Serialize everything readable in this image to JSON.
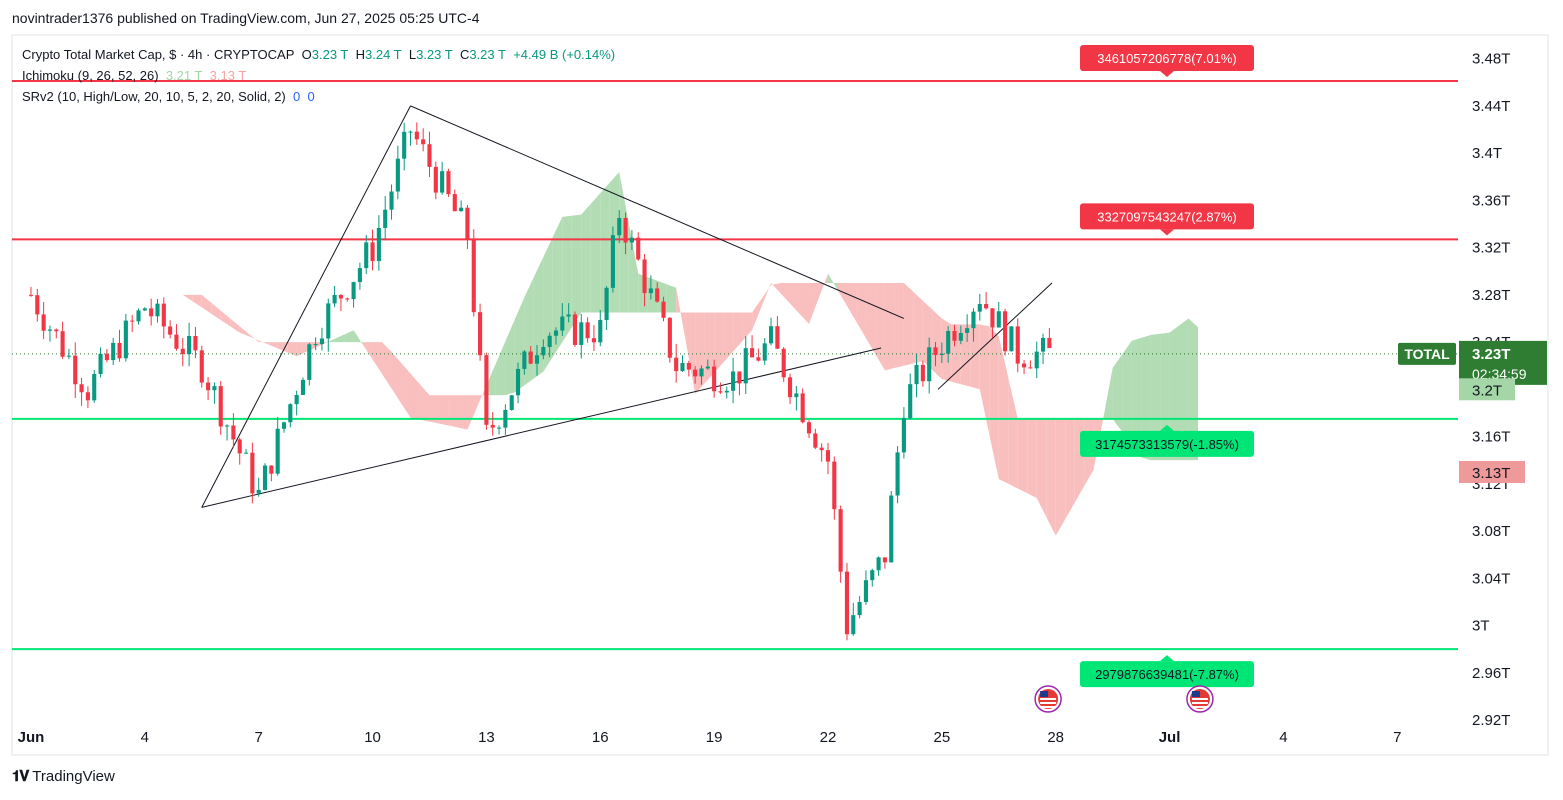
{
  "header": {
    "publisher": "novintrader1376 published on TradingView.com, Jun 27, 2025 05:25 UTC-4"
  },
  "legend": {
    "symbol": "Crypto Total Market Cap, $ · 4h · CRYPTOCAP",
    "o_label": "O",
    "o_value": "3.23 T",
    "h_label": "H",
    "h_value": "3.24 T",
    "l_label": "L",
    "l_value": "3.23 T",
    "c_label": "C",
    "c_value": "3.23 T",
    "change": "+4.49 B (+0.14%)",
    "ichimoku_label": "Ichimoku (9, 26, 52, 26)",
    "ichimoku_v1": "3.21 T",
    "ichimoku_v2": "3.13 T",
    "srv2_label": "SRv2 (10, High/Low, 20, 10, 5, 2, 20, Solid, 2)",
    "srv2_v1": "0",
    "srv2_v2": "0"
  },
  "footer": {
    "brand": "TradingView"
  },
  "colors": {
    "up": "#089981",
    "down": "#f23645",
    "support": "#00e676",
    "resistance": "#f23645",
    "cloud_bull": "#a5d6a7",
    "cloud_bear": "#f8b4b4"
  },
  "chart_data": {
    "type": "candlestick",
    "timeframe": "4h",
    "y_axis": {
      "ticks": [
        "3.48T",
        "3.44T",
        "3.4T",
        "3.36T",
        "3.32T",
        "3.28T",
        "3.24T",
        "3.2T",
        "3.16T",
        "3.12T",
        "3.08T",
        "3.04T",
        "3T",
        "2.96T",
        "2.92T"
      ],
      "tick_values": [
        3.48,
        3.44,
        3.4,
        3.36,
        3.32,
        3.28,
        3.24,
        3.2,
        3.16,
        3.12,
        3.08,
        3.04,
        3.0,
        2.96,
        2.92
      ],
      "ylim": [
        2.92,
        3.5
      ]
    },
    "x_axis": {
      "ticks": [
        "Jun",
        "4",
        "7",
        "10",
        "13",
        "16",
        "19",
        "22",
        "25",
        "28",
        "Jul",
        "4",
        "7"
      ],
      "tick_days": [
        1,
        4,
        7,
        10,
        13,
        16,
        19,
        22,
        25,
        28,
        31,
        34,
        37
      ],
      "xlim_days": [
        0.5,
        38.6
      ]
    },
    "price_badges": [
      {
        "label": "TOTAL",
        "value": "3.23T",
        "countdown": "02:34:59",
        "price": 3.23,
        "color": "#2e7d32"
      },
      {
        "label": "",
        "value": "3.2T",
        "price": 3.2,
        "color": "#a5d6a7"
      },
      {
        "label": "",
        "value": "3.13T",
        "price": 3.13,
        "color": "#ef9a9a"
      }
    ],
    "levels": [
      {
        "kind": "resistance",
        "price": 3.461,
        "label": "3461057206778(7.01%)"
      },
      {
        "kind": "resistance",
        "price": 3.327,
        "label": "3327097543247(2.87%)"
      },
      {
        "kind": "support",
        "price": 3.175,
        "label": "3174573313579(-1.85%)"
      },
      {
        "kind": "support",
        "price": 2.98,
        "label": "2979876639481(-7.87%)"
      }
    ],
    "trendlines": [
      {
        "from": [
          5.5,
          3.1
        ],
        "to": [
          11.0,
          3.44
        ]
      },
      {
        "from": [
          11.0,
          3.44
        ],
        "to": [
          24.0,
          3.26
        ]
      },
      {
        "from": [
          5.5,
          3.1
        ],
        "to": [
          23.4,
          3.235
        ]
      },
      {
        "from": [
          24.9,
          3.2
        ],
        "to": [
          27.9,
          3.29
        ]
      }
    ],
    "event_markers": [
      {
        "day": 27.8,
        "icon": "us-flag-icon"
      },
      {
        "day": 31.8,
        "icon": "us-flag-icon"
      }
    ],
    "ohlc_days": [
      1.0,
      2.5,
      4.0,
      5.5,
      7.0,
      8.5,
      10.0,
      11.0,
      12.5,
      13.0,
      14.5,
      16.0,
      16.5,
      18.0,
      19.5,
      20.5,
      22.0,
      22.5,
      23.5,
      24.0,
      25.0,
      26.0,
      27.0,
      27.9
    ],
    "ohlc_closes": [
      3.28,
      3.2,
      3.27,
      3.22,
      3.11,
      3.25,
      3.32,
      3.42,
      3.33,
      3.16,
      3.25,
      3.25,
      3.35,
      3.22,
      3.21,
      3.24,
      3.14,
      3.0,
      3.06,
      3.19,
      3.24,
      3.28,
      3.23,
      3.23
    ],
    "ohlc_highs": [
      3.31,
      3.29,
      3.3,
      3.31,
      3.16,
      3.28,
      3.41,
      3.44,
      3.37,
      3.27,
      3.26,
      3.33,
      3.35,
      3.24,
      3.23,
      3.25,
      3.19,
      3.09,
      3.12,
      3.22,
      3.26,
      3.29,
      3.26,
      3.24
    ],
    "ohlc_lows": [
      3.18,
      3.19,
      3.21,
      3.1,
      3.1,
      3.21,
      3.22,
      3.38,
      3.26,
      3.15,
      3.2,
      3.2,
      3.25,
      3.17,
      3.18,
      3.2,
      3.12,
      2.96,
      3.0,
      3.19,
      3.19,
      3.21,
      3.2,
      3.22
    ]
  }
}
